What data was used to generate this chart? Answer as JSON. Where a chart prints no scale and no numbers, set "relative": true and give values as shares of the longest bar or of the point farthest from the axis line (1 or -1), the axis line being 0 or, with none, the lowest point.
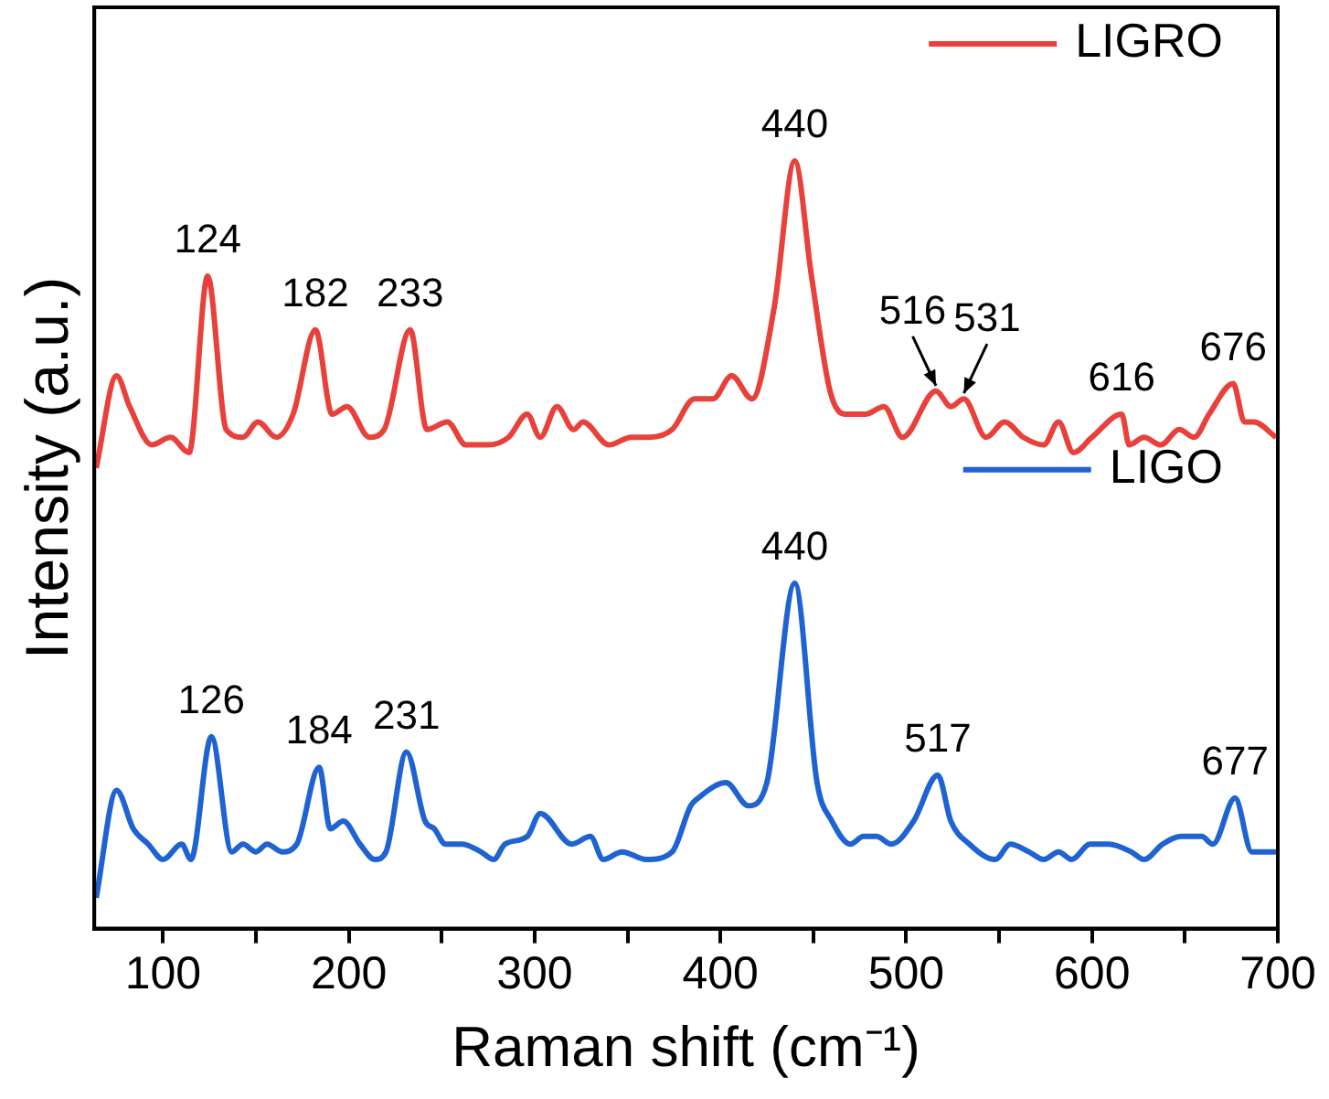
{
  "chart_data": {
    "type": "line",
    "relative": true,
    "xlabel": "Raman shift (cm⁻¹)",
    "ylabel": "Intensity (a.u.)",
    "xlim": [
      63,
      700
    ],
    "xticks": [
      100,
      {
        "value": 150,
        "label": null
      },
      200,
      {
        "value": 250,
        "label": null
      },
      300,
      {
        "value": 350,
        "label": null
      },
      400,
      {
        "value": 450,
        "label": null
      },
      500,
      {
        "value": 550,
        "label": null
      },
      600,
      {
        "value": 650,
        "label": null
      },
      700
    ],
    "grid": false,
    "legend": "top right",
    "marker": "none",
    "line_style": "solid",
    "series": [
      {
        "name": "LIGRO",
        "color": "#e8413c",
        "x": [
          64,
          75,
          82,
          94,
          104,
          114,
          124,
          134,
          143,
          151,
          161,
          170,
          182,
          191,
          199,
          211,
          219,
          233,
          242,
          253,
          263,
          275,
          286,
          296,
          303,
          312,
          321,
          326,
          340,
          352,
          362,
          374,
          386,
          396,
          406,
          417,
          429,
          440,
          449,
          459,
          467,
          478,
          488,
          498,
          516,
          524,
          531,
          543,
          553,
          563,
          574,
          582,
          590,
          600,
          616,
          620,
          628,
          637,
          647,
          655,
          663,
          676,
          682,
          687,
          699
        ],
        "values": [
          0.6,
          0.72,
          0.68,
          0.63,
          0.64,
          0.62,
          0.85,
          0.65,
          0.64,
          0.66,
          0.64,
          0.67,
          0.78,
          0.67,
          0.68,
          0.64,
          0.65,
          0.78,
          0.65,
          0.66,
          0.63,
          0.63,
          0.64,
          0.67,
          0.64,
          0.68,
          0.65,
          0.66,
          0.63,
          0.64,
          0.64,
          0.65,
          0.69,
          0.69,
          0.72,
          0.69,
          0.81,
          1.0,
          0.85,
          0.7,
          0.67,
          0.67,
          0.68,
          0.64,
          0.7,
          0.68,
          0.69,
          0.64,
          0.66,
          0.64,
          0.63,
          0.66,
          0.62,
          0.64,
          0.67,
          0.63,
          0.64,
          0.63,
          0.65,
          0.64,
          0.67,
          0.71,
          0.66,
          0.66,
          0.64
        ]
      },
      {
        "name": "LIGO",
        "color": "#1f63d2",
        "x": [
          64,
          75,
          84,
          92,
          100,
          110,
          115,
          126,
          137,
          143,
          150,
          156,
          164,
          172,
          184,
          190,
          197,
          206,
          214,
          220,
          231,
          241,
          246,
          252,
          261,
          271,
          278,
          284,
          296,
          303,
          320,
          330,
          337,
          347,
          360,
          374,
          384,
          388,
          403,
          415,
          425,
          440,
          452,
          460,
          470,
          477,
          484,
          492,
          504,
          517,
          524,
          534,
          548,
          556,
          566,
          574,
          582,
          589,
          599,
          609,
          621,
          628,
          638,
          648,
          659,
          665,
          677,
          686,
          699
        ],
        "values": [
          0.04,
          0.18,
          0.13,
          0.11,
          0.09,
          0.11,
          0.09,
          0.25,
          0.1,
          0.11,
          0.1,
          0.11,
          0.1,
          0.11,
          0.21,
          0.13,
          0.14,
          0.11,
          0.09,
          0.1,
          0.23,
          0.14,
          0.13,
          0.11,
          0.11,
          0.1,
          0.09,
          0.11,
          0.12,
          0.15,
          0.11,
          0.12,
          0.09,
          0.1,
          0.09,
          0.1,
          0.16,
          0.17,
          0.19,
          0.16,
          0.19,
          0.45,
          0.19,
          0.14,
          0.11,
          0.12,
          0.12,
          0.11,
          0.14,
          0.2,
          0.14,
          0.11,
          0.09,
          0.11,
          0.1,
          0.09,
          0.1,
          0.09,
          0.11,
          0.11,
          0.1,
          0.09,
          0.11,
          0.12,
          0.12,
          0.11,
          0.17,
          0.1,
          0.1
        ]
      }
    ],
    "annotations": [
      {
        "text": "124",
        "x": 124,
        "y": 0.85
      },
      {
        "text": "182",
        "x": 182,
        "y": 0.78
      },
      {
        "text": "233",
        "x": 233,
        "y": 0.78
      },
      {
        "text": "440",
        "x": 440,
        "y": 1.0
      },
      {
        "text": "516",
        "x": 516,
        "y": 0.7
      },
      {
        "text": "531",
        "x": 531,
        "y": 0.69
      },
      {
        "text": "616",
        "x": 616,
        "y": 0.67
      },
      {
        "text": "676",
        "x": 676,
        "y": 0.71
      },
      {
        "text": "126",
        "x": 126,
        "y": 0.25
      },
      {
        "text": "184",
        "x": 184,
        "y": 0.21
      },
      {
        "text": "231",
        "x": 231,
        "y": 0.23
      },
      {
        "text": "440",
        "x": 440,
        "y": 0.45
      },
      {
        "text": "517",
        "x": 517,
        "y": 0.2
      },
      {
        "text": "677",
        "x": 677,
        "y": 0.17
      }
    ]
  }
}
